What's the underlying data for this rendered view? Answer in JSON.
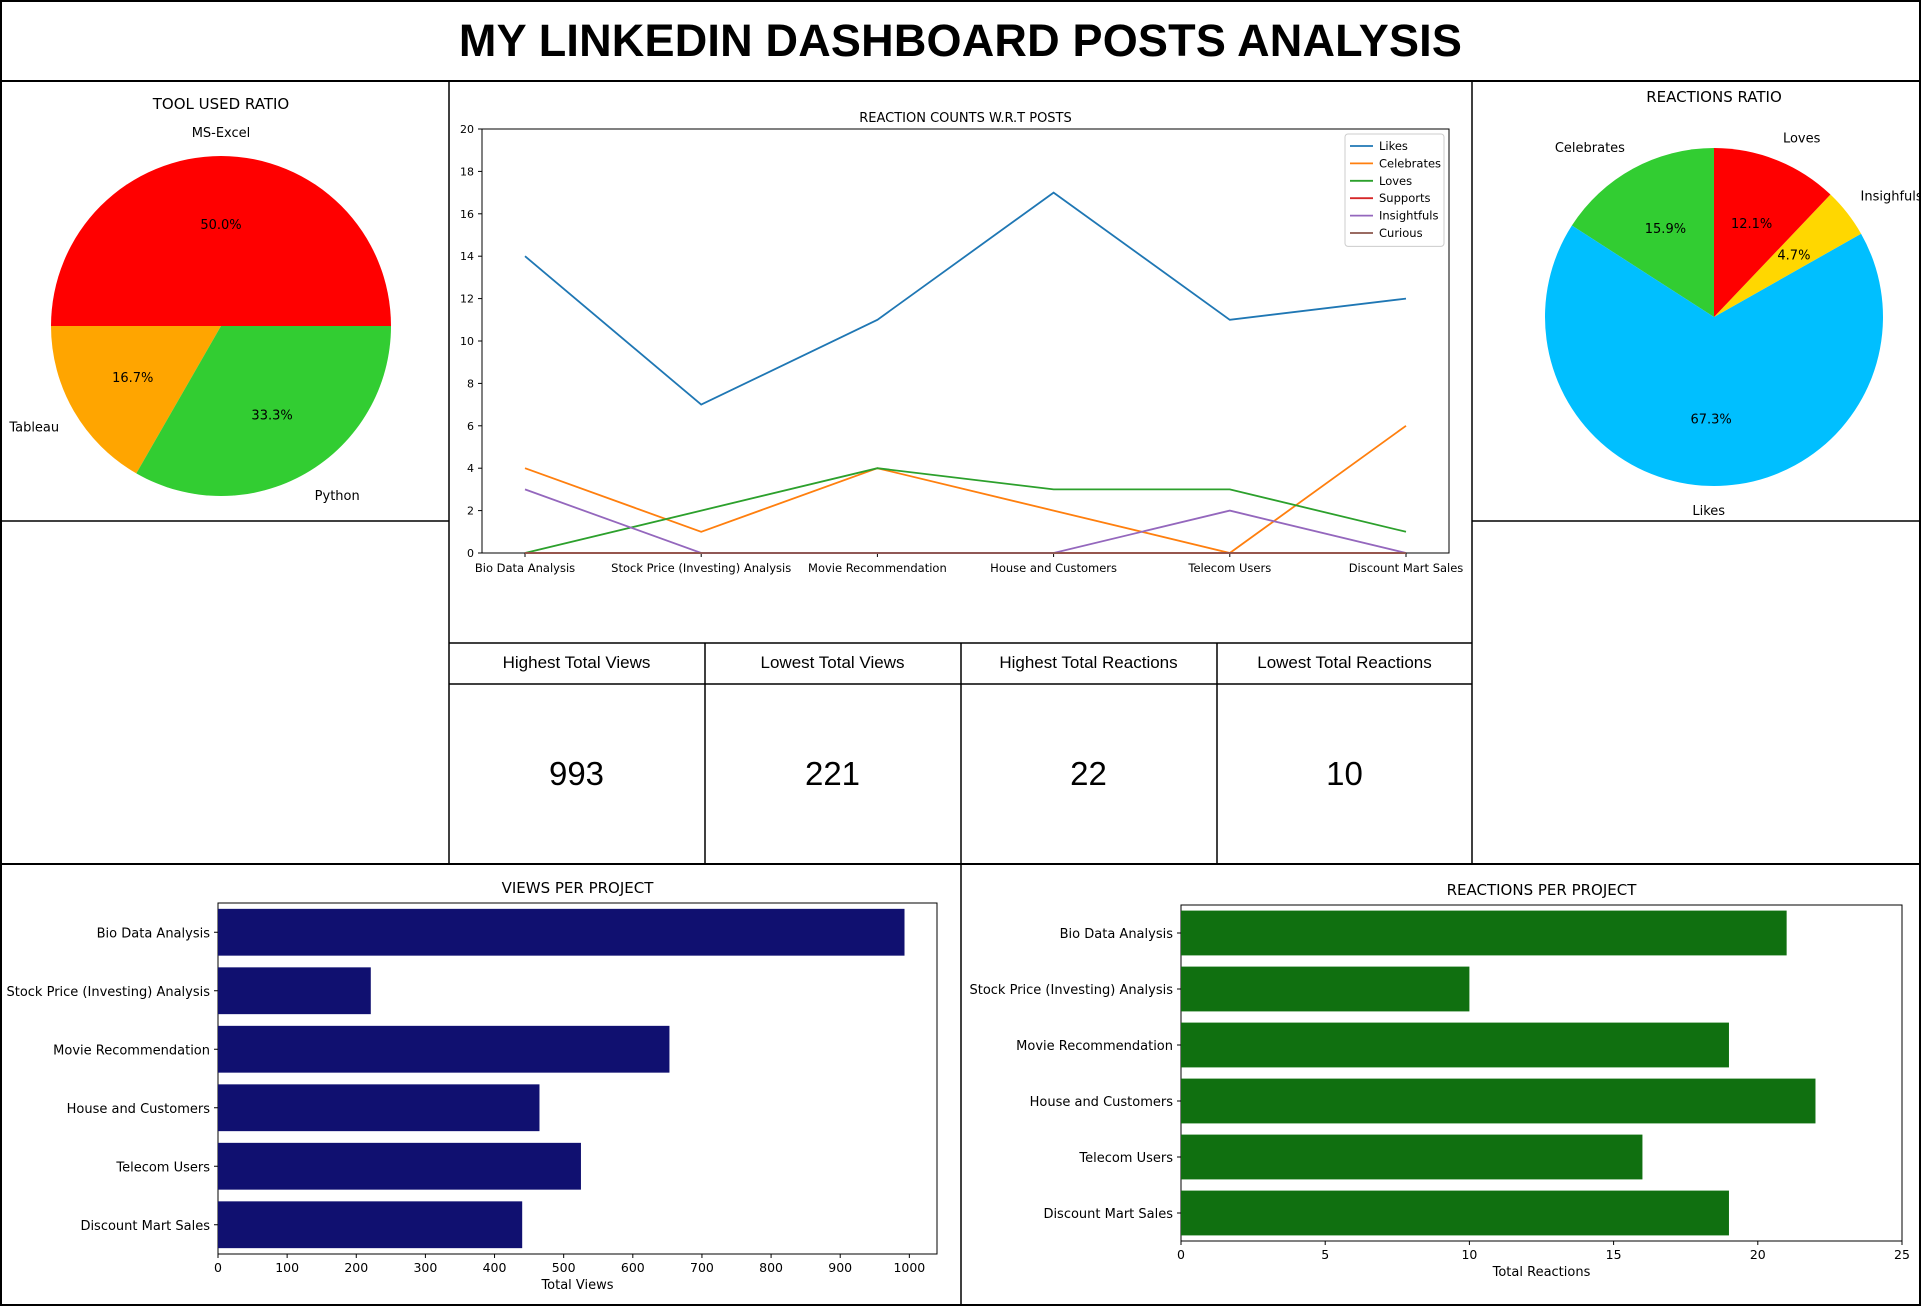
{
  "dashboard": {
    "title": "MY LINKEDIN DASHBOARD POSTS ANALYSIS"
  },
  "stats": [
    {
      "label": "Highest Total Views",
      "value": "993"
    },
    {
      "label": "Lowest Total Views",
      "value": "221"
    },
    {
      "label": "Highest Total Reactions",
      "value": "22"
    },
    {
      "label": "Lowest Total Reactions",
      "value": "10"
    }
  ],
  "chart_data": [
    {
      "id": "tool_pie",
      "type": "pie",
      "title": "TOOL USED RATIO",
      "labels": [
        "MS-Excel",
        "Tableau",
        "Python"
      ],
      "values": [
        50.0,
        16.7,
        33.3
      ],
      "autopct": [
        "50.0%",
        "16.7%",
        "33.3%"
      ],
      "colors": [
        "#ff0000",
        "#ffa500",
        "#32cd32"
      ]
    },
    {
      "id": "reaction_line",
      "type": "line",
      "title": "REACTION COUNTS W.R.T POSTS",
      "categories": [
        "Bio Data Analysis",
        "Stock Price (Investing) Analysis",
        "Movie Recommendation",
        "House and Customers",
        "Telecom Users",
        "Discount Mart Sales"
      ],
      "ylim": [
        0,
        20
      ],
      "yticks": [
        0,
        2,
        4,
        6,
        8,
        10,
        12,
        14,
        16,
        18,
        20
      ],
      "legend_position": "top-right",
      "series": [
        {
          "name": "Likes",
          "color": "#1f77b4",
          "values": [
            14,
            7,
            11,
            17,
            11,
            12
          ]
        },
        {
          "name": "Celebrates",
          "color": "#ff7f0e",
          "values": [
            4,
            1,
            4,
            2,
            0,
            6
          ]
        },
        {
          "name": "Loves",
          "color": "#2ca02c",
          "values": [
            0,
            2,
            4,
            3,
            3,
            1
          ]
        },
        {
          "name": "Supports",
          "color": "#d62728",
          "values": [
            0,
            0,
            0,
            0,
            0,
            0
          ]
        },
        {
          "name": "Insightfuls",
          "color": "#9467bd",
          "values": [
            3,
            0,
            0,
            0,
            2,
            0
          ]
        },
        {
          "name": "Curious",
          "color": "#8c564b",
          "values": [
            0,
            0,
            0,
            0,
            0,
            0
          ]
        }
      ]
    },
    {
      "id": "reactions_pie",
      "type": "pie",
      "title": "REACTIONS RATIO",
      "labels": [
        "Celebrates",
        "Likes",
        "Insighfuls",
        "Loves"
      ],
      "values": [
        15.9,
        67.3,
        4.7,
        12.1
      ],
      "autopct": [
        "15.9%",
        "67.3%",
        "4.7%",
        "12.1%"
      ],
      "colors": [
        "#32cd32",
        "#00bfff",
        "#ffd700",
        "#ff0000"
      ]
    },
    {
      "id": "views_bar",
      "type": "bar",
      "orientation": "horizontal",
      "title": "VIEWS PER PROJECT",
      "xlabel": "Total Views",
      "categories": [
        "Bio Data Analysis",
        "Stock Price (Investing) Analysis",
        "Movie Recommendation",
        "House and Customers",
        "Telecom Users",
        "Discount Mart Sales"
      ],
      "values": [
        993,
        221,
        653,
        465,
        525,
        440
      ],
      "xlim": [
        0,
        1040
      ],
      "xticks": [
        0,
        100,
        200,
        300,
        400,
        500,
        600,
        700,
        800,
        900,
        1000
      ],
      "color": "#101070"
    },
    {
      "id": "reactions_bar",
      "type": "bar",
      "orientation": "horizontal",
      "title": "REACTIONS PER PROJECT",
      "xlabel": "Total Reactions",
      "categories": [
        "Bio Data Analysis",
        "Stock Price (Investing) Analysis",
        "Movie Recommendation",
        "House and Customers",
        "Telecom Users",
        "Discount Mart Sales"
      ],
      "values": [
        21,
        10,
        19,
        22,
        16,
        19
      ],
      "xlim": [
        0,
        25
      ],
      "xticks": [
        0,
        5,
        10,
        15,
        20,
        25
      ],
      "color": "#107010"
    }
  ]
}
